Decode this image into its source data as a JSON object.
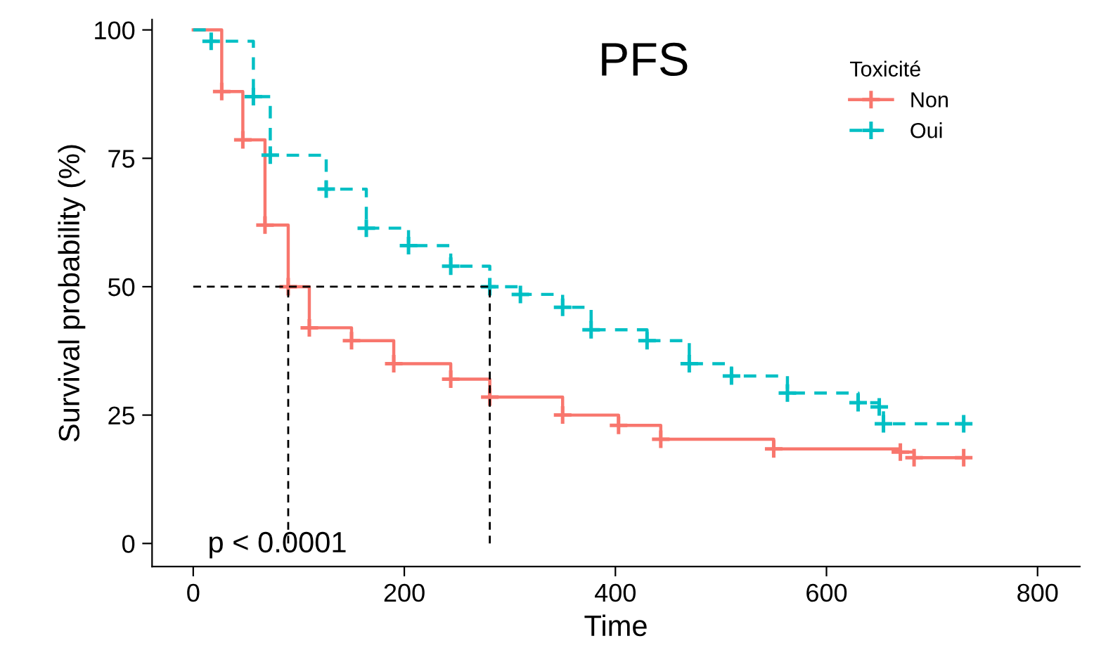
{
  "chart_data": {
    "type": "step",
    "title": "PFS",
    "xlabel": "Time",
    "ylabel": "Survival probability (%)",
    "legend_title": "Toxicité",
    "xlim": [
      -39,
      840
    ],
    "ylim": [
      -4.5,
      102
    ],
    "xticks": [
      0,
      200,
      400,
      600,
      800
    ],
    "yticks": [
      0,
      25,
      50,
      75,
      100
    ],
    "grid": false,
    "legend": "top right",
    "marker": "cross",
    "series": [
      {
        "name": "Non",
        "color": "#f8766d",
        "line_style": "solid",
        "x": [
          0,
          27,
          47,
          68,
          90,
          110,
          150,
          190,
          244,
          281,
          350,
          403,
          443,
          550,
          670,
          683,
          730
        ],
        "values": [
          100,
          88,
          78.6,
          62,
          50,
          42,
          39.5,
          35,
          32,
          28.5,
          25,
          23,
          20.3,
          18.4,
          17.8,
          16.7,
          16.7
        ]
      },
      {
        "name": "Oui",
        "color": "#00bfc4",
        "line_style": "dashed",
        "x": [
          0,
          17,
          57,
          73,
          126,
          164,
          204,
          244,
          281,
          310,
          350,
          377,
          430,
          470,
          510,
          563,
          630,
          650,
          654,
          730
        ],
        "values": [
          100,
          97.8,
          87,
          75.6,
          69,
          61.4,
          58,
          54,
          50,
          48.5,
          46,
          41.6,
          39.5,
          35,
          32.6,
          29.3,
          27.4,
          26.6,
          23.3,
          23.3
        ]
      }
    ],
    "ref_lines": [
      {
        "axis": "y",
        "value": 50,
        "label": null
      },
      {
        "axis": "x",
        "value": 90,
        "label": null
      },
      {
        "axis": "x",
        "value": 281,
        "label": null
      }
    ],
    "annotations": [
      "p < 0.0001"
    ]
  }
}
